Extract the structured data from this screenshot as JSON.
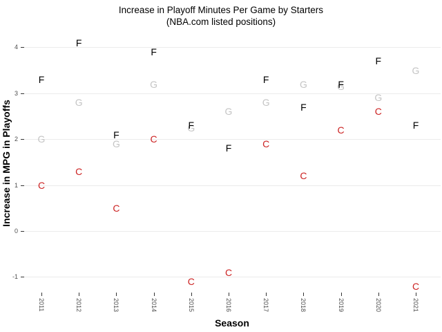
{
  "header": {
    "title": "Increase in Playoff Minutes Per Game by Starters",
    "subtitle": "(NBA.com listed positions)"
  },
  "chart_data": {
    "type": "scatter",
    "marker_style": "text-letter",
    "title": "Increase in Playoff Minutes Per Game by Starters",
    "subtitle": "(NBA.com listed positions)",
    "xlabel": "Season",
    "ylabel": "Increase in MPG in Playoffs",
    "categories": [
      "2011",
      "2012",
      "2013",
      "2014",
      "2015",
      "2016",
      "2017",
      "2018",
      "2019",
      "2020",
      "2021"
    ],
    "yticks": [
      4,
      3,
      2,
      1,
      0,
      -1
    ],
    "ylim": [
      -1.4,
      4.3
    ],
    "grid": "horizontal-major-only",
    "legend": "none",
    "series": [
      {
        "name": "C",
        "letter": "C",
        "color": "#cc2222",
        "values": [
          1.0,
          1.3,
          0.5,
          2.0,
          -1.1,
          -0.9,
          1.9,
          1.2,
          2.2,
          2.6,
          -1.2
        ]
      },
      {
        "name": "G",
        "letter": "G",
        "color": "#c4c4c4",
        "values": [
          2.0,
          2.8,
          1.9,
          3.2,
          2.25,
          2.6,
          2.8,
          3.2,
          3.15,
          2.9,
          3.5
        ]
      },
      {
        "name": "F",
        "letter": "F",
        "color": "#000000",
        "values": [
          3.3,
          4.1,
          2.1,
          3.9,
          2.3,
          1.8,
          3.3,
          2.7,
          3.2,
          3.7,
          2.3
        ]
      }
    ],
    "colors": {
      "gridline": "#ebebeb",
      "tick": "#333333",
      "tick_label": "#4d4d4d",
      "title": "#000000"
    }
  }
}
